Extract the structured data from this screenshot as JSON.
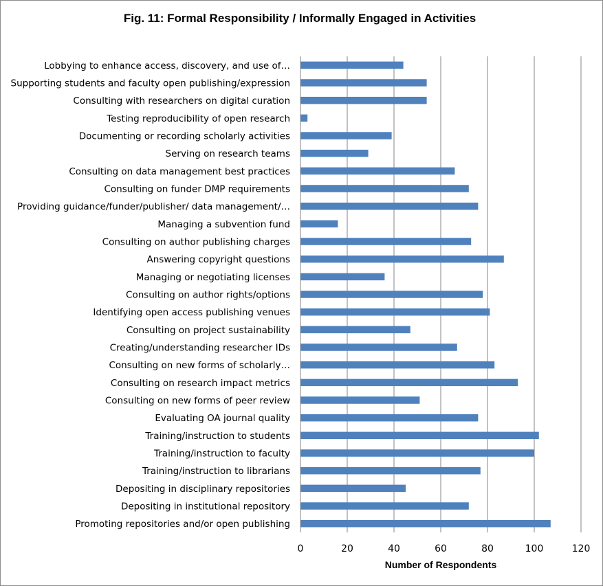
{
  "chart_data": {
    "type": "bar",
    "orientation": "horizontal",
    "title": "Fig. 11: Formal Responsibility / Informally Engaged in Activities",
    "xlabel": "Number of Respondents",
    "ylabel": "",
    "xlim": [
      0,
      120
    ],
    "xticks": [
      0,
      20,
      40,
      60,
      80,
      100,
      120
    ],
    "grid": "vertical",
    "legend": "none",
    "bar_color": "#4f81bd",
    "categories": [
      "Lobbying to enhance access, discovery, and use of…",
      "Supporting students and faculty open publishing/expression",
      "Consulting with researchers on digital curation",
      "Testing reproducibility of open research",
      "Documenting or recording scholarly activities",
      "Serving on research teams",
      "Consulting on data management best practices",
      "Consulting on funder DMP requirements",
      "Providing guidance/funder/publisher/ data management/…",
      "Managing a subvention fund",
      "Consulting  on author publishing charges",
      "Answering copyright questions",
      "Managing or negotiating licenses",
      "Consulting on author rights/options",
      "Identifying open access publishing venues",
      "Consulting on project sustainability",
      "Creating/understanding researcher IDs",
      "Consulting on new forms of scholarly…",
      "Consulting on research impact metrics",
      "Consulting on new forms of peer review",
      "Evaluating OA journal quality",
      "Training/instruction to students",
      "Training/instruction to faculty",
      "Training/instruction to librarians",
      "Depositing in disciplinary repositories",
      "Depositing in institutional repository",
      "Promoting repositories and/or open publishing"
    ],
    "values": [
      44,
      54,
      54,
      3,
      39,
      29,
      66,
      72,
      76,
      16,
      73,
      87,
      36,
      78,
      81,
      47,
      67,
      83,
      93,
      51,
      76,
      102,
      100,
      77,
      45,
      72,
      107
    ]
  }
}
